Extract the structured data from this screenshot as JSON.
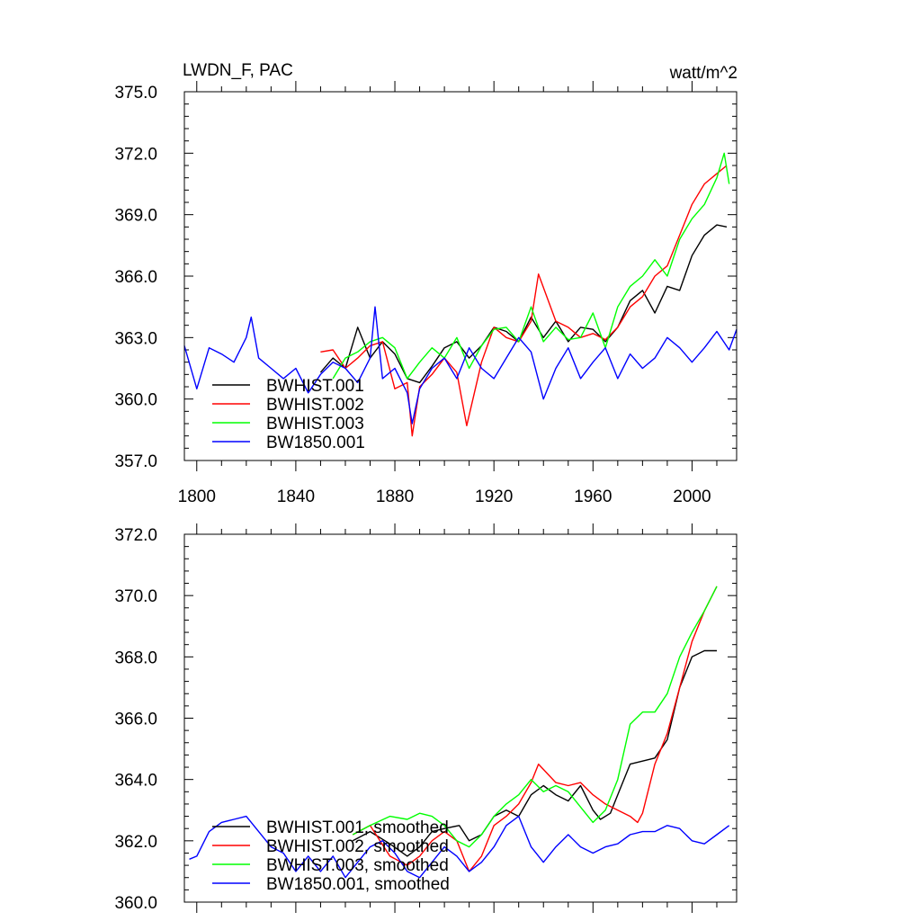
{
  "page": {
    "title_left": "LWDN_F, PAC",
    "title_right": "watt/m^2"
  },
  "chart_data": [
    {
      "type": "line",
      "title": "LWDN_F, PAC",
      "units": "watt/m^2",
      "xlim": [
        1795,
        2018
      ],
      "ylim": [
        357.0,
        375.0
      ],
      "x_ticks": [
        1800,
        1840,
        1880,
        1920,
        1960,
        2000
      ],
      "x_tick_labels": [
        "1800",
        "1840",
        "1880",
        "1920",
        "1960",
        "2000"
      ],
      "y_ticks": [
        357.0,
        360.0,
        363.0,
        366.0,
        369.0,
        372.0,
        375.0
      ],
      "y_tick_labels": [
        "357.0",
        "360.0",
        "363.0",
        "366.0",
        "369.0",
        "372.0",
        "375.0"
      ],
      "legend_position": "lower-left",
      "series": [
        {
          "name": "BWHIST.001",
          "color": "#000000",
          "x": [
            1850,
            1855,
            1860,
            1865,
            1870,
            1875,
            1880,
            1885,
            1890,
            1895,
            1900,
            1905,
            1910,
            1915,
            1920,
            1925,
            1930,
            1935,
            1940,
            1945,
            1950,
            1955,
            1960,
            1965,
            1970,
            1975,
            1980,
            1985,
            1990,
            1995,
            2000,
            2005,
            2010,
            2014
          ],
          "y": [
            361.3,
            362.0,
            361.5,
            363.5,
            362.0,
            362.8,
            362.2,
            361.0,
            360.8,
            361.6,
            362.5,
            362.8,
            362.0,
            362.6,
            363.5,
            363.3,
            362.8,
            364.0,
            363.0,
            363.8,
            362.8,
            363.5,
            363.4,
            362.8,
            363.5,
            364.8,
            365.3,
            364.2,
            365.5,
            365.3,
            367.0,
            368.0,
            368.5,
            368.4
          ]
        },
        {
          "name": "BWHIST.002",
          "color": "#ff0000",
          "x": [
            1850,
            1855,
            1860,
            1865,
            1870,
            1875,
            1880,
            1885,
            1887,
            1890,
            1895,
            1900,
            1905,
            1909,
            1915,
            1920,
            1925,
            1930,
            1935,
            1938,
            1945,
            1950,
            1955,
            1960,
            1965,
            1970,
            1975,
            1980,
            1985,
            1990,
            1995,
            2000,
            2005,
            2010,
            2014
          ],
          "y": [
            362.3,
            362.4,
            361.5,
            362.0,
            362.6,
            362.8,
            360.5,
            360.8,
            358.2,
            360.6,
            361.2,
            362.0,
            361.3,
            358.7,
            361.8,
            363.5,
            363.0,
            362.8,
            363.8,
            366.1,
            363.8,
            363.5,
            363.0,
            363.2,
            362.9,
            363.5,
            364.5,
            365.0,
            366.0,
            366.5,
            368.0,
            369.5,
            370.5,
            371.0,
            371.4
          ]
        },
        {
          "name": "BWHIST.003",
          "color": "#00ff00",
          "x": [
            1855,
            1860,
            1865,
            1870,
            1875,
            1880,
            1885,
            1890,
            1895,
            1900,
            1905,
            1910,
            1915,
            1920,
            1925,
            1930,
            1935,
            1940,
            1945,
            1950,
            1955,
            1960,
            1965,
            1970,
            1975,
            1980,
            1985,
            1990,
            1995,
            2000,
            2005,
            2010,
            2013,
            2015
          ],
          "y": [
            361.0,
            362.0,
            362.3,
            362.8,
            363.0,
            362.5,
            361.0,
            361.8,
            362.5,
            362.0,
            363.0,
            361.5,
            362.6,
            363.4,
            363.5,
            362.8,
            364.5,
            362.8,
            363.5,
            362.9,
            363.0,
            364.2,
            362.5,
            364.5,
            365.5,
            366.0,
            366.8,
            366.0,
            367.8,
            368.8,
            369.5,
            370.8,
            372.0,
            370.5
          ]
        },
        {
          "name": "BW1850.001",
          "color": "#0000ff",
          "x": [
            1795,
            1800,
            1805,
            1810,
            1815,
            1820,
            1822,
            1825,
            1830,
            1835,
            1840,
            1845,
            1850,
            1855,
            1860,
            1865,
            1870,
            1872,
            1875,
            1880,
            1885,
            1887,
            1890,
            1895,
            1900,
            1905,
            1910,
            1915,
            1920,
            1925,
            1930,
            1935,
            1940,
            1945,
            1950,
            1955,
            1960,
            1965,
            1970,
            1975,
            1980,
            1985,
            1990,
            1995,
            2000,
            2005,
            2010,
            2015,
            2018
          ],
          "y": [
            362.6,
            360.5,
            362.5,
            362.2,
            361.8,
            363.0,
            364.0,
            362.0,
            361.5,
            361.0,
            361.5,
            360.3,
            361.2,
            361.8,
            361.5,
            360.8,
            362.0,
            364.5,
            361.0,
            361.5,
            360.3,
            358.8,
            360.5,
            361.5,
            362.0,
            361.0,
            362.5,
            361.5,
            361.0,
            362.0,
            363.0,
            362.3,
            360.0,
            361.5,
            362.5,
            361.0,
            361.8,
            362.5,
            361.0,
            362.2,
            361.5,
            362.0,
            363.0,
            362.5,
            361.8,
            362.5,
            363.3,
            362.4,
            363.4
          ]
        }
      ]
    },
    {
      "type": "line",
      "title": "",
      "xlim": [
        1795,
        2018
      ],
      "ylim": [
        360.0,
        372.0
      ],
      "x_ticks": [
        1800,
        1840,
        1880,
        1920,
        1960,
        2000
      ],
      "y_ticks": [
        360.0,
        362.0,
        364.0,
        366.0,
        368.0,
        370.0,
        372.0
      ],
      "y_tick_labels": [
        "360.0",
        "362.0",
        "364.0",
        "366.0",
        "368.0",
        "370.0",
        "372.0"
      ],
      "legend_position": "lower-left",
      "series": [
        {
          "name": "BWHIST.001, smoothed",
          "color": "#000000",
          "x": [
            1863,
            1870,
            1878,
            1885,
            1890,
            1895,
            1900,
            1906,
            1910,
            1915,
            1920,
            1925,
            1930,
            1935,
            1940,
            1945,
            1950,
            1955,
            1960,
            1963,
            1967,
            1970,
            1975,
            1980,
            1985,
            1990,
            1995,
            2000,
            2005,
            2010
          ],
          "y": [
            362.0,
            362.3,
            361.9,
            361.5,
            361.8,
            362.3,
            362.4,
            362.5,
            362.0,
            362.2,
            362.8,
            363.0,
            362.8,
            363.5,
            363.8,
            363.5,
            363.3,
            363.8,
            363.0,
            362.7,
            362.9,
            363.5,
            364.5,
            364.6,
            364.7,
            365.3,
            367.0,
            368.0,
            368.2,
            368.2
          ]
        },
        {
          "name": "BWHIST.002, smoothed",
          "color": "#ff0000",
          "x": [
            1863,
            1870,
            1878,
            1885,
            1890,
            1895,
            1900,
            1905,
            1910,
            1915,
            1920,
            1925,
            1930,
            1935,
            1938,
            1945,
            1950,
            1955,
            1960,
            1965,
            1970,
            1975,
            1978,
            1980,
            1985,
            1990,
            1995,
            2000,
            2005,
            2010
          ],
          "y": [
            362.2,
            362.5,
            361.5,
            361.2,
            361.5,
            362.0,
            362.3,
            362.0,
            361.0,
            361.5,
            362.5,
            362.8,
            363.2,
            363.9,
            364.5,
            363.9,
            363.8,
            363.9,
            363.5,
            363.2,
            363.0,
            362.8,
            362.6,
            362.9,
            364.5,
            365.5,
            367.0,
            368.5,
            369.5,
            370.3
          ]
        },
        {
          "name": "BWHIST.003, smoothed",
          "color": "#00ff00",
          "x": [
            1863,
            1870,
            1878,
            1885,
            1890,
            1895,
            1900,
            1905,
            1910,
            1915,
            1920,
            1925,
            1930,
            1935,
            1940,
            1945,
            1950,
            1955,
            1960,
            1965,
            1970,
            1975,
            1980,
            1985,
            1990,
            1995,
            2000,
            2005,
            2010
          ],
          "y": [
            362.2,
            362.5,
            362.8,
            362.7,
            362.9,
            362.8,
            362.5,
            362.0,
            361.8,
            362.2,
            362.8,
            363.2,
            363.5,
            364.0,
            363.6,
            363.8,
            363.6,
            363.1,
            362.6,
            363.0,
            364.0,
            365.8,
            366.2,
            366.2,
            366.8,
            368.0,
            368.8,
            369.5,
            370.3
          ]
        },
        {
          "name": "BW1850.001, smoothed",
          "color": "#0000ff",
          "x": [
            1797,
            1800,
            1805,
            1810,
            1815,
            1820,
            1825,
            1830,
            1835,
            1840,
            1845,
            1850,
            1855,
            1860,
            1865,
            1870,
            1875,
            1880,
            1885,
            1890,
            1895,
            1900,
            1905,
            1910,
            1915,
            1920,
            1925,
            1930,
            1935,
            1940,
            1945,
            1950,
            1955,
            1960,
            1965,
            1970,
            1975,
            1980,
            1985,
            1990,
            1995,
            2000,
            2005,
            2010,
            2015
          ],
          "y": [
            361.4,
            361.5,
            362.3,
            362.6,
            362.7,
            362.8,
            362.3,
            361.8,
            361.6,
            361.0,
            361.5,
            361.0,
            361.5,
            360.8,
            361.3,
            361.8,
            362.0,
            361.6,
            361.0,
            360.8,
            361.3,
            361.8,
            361.5,
            361.0,
            361.3,
            361.8,
            362.5,
            362.8,
            361.8,
            361.3,
            361.8,
            362.2,
            361.8,
            361.6,
            361.8,
            361.9,
            362.2,
            362.3,
            362.3,
            362.5,
            362.4,
            362.0,
            361.9,
            362.2,
            362.5
          ]
        }
      ]
    }
  ]
}
